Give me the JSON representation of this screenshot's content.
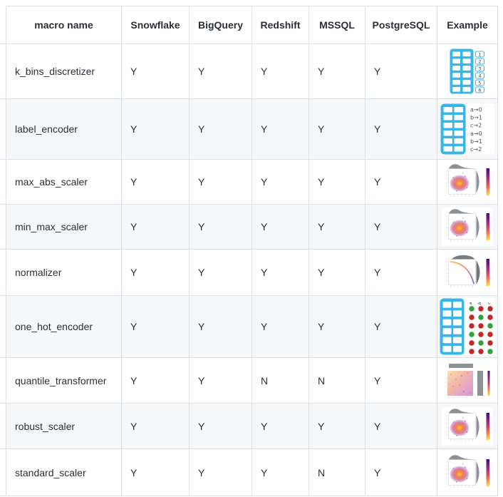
{
  "table": {
    "columns": [
      "macro name",
      "Snowflake",
      "BigQuery",
      "Redshift",
      "MSSQL",
      "PostgreSQL",
      "Example"
    ],
    "rows": [
      {
        "name": "k_bins_discretizer",
        "values": [
          "Y",
          "Y",
          "Y",
          "Y",
          "Y"
        ],
        "example_icon": "kbins-table-icon"
      },
      {
        "name": "label_encoder",
        "values": [
          "Y",
          "Y",
          "Y",
          "Y",
          "Y"
        ],
        "example_icon": "label-mapping-icon"
      },
      {
        "name": "max_abs_scaler",
        "values": [
          "Y",
          "Y",
          "Y",
          "Y",
          "Y"
        ],
        "example_icon": "jointplot-icon"
      },
      {
        "name": "min_max_scaler",
        "values": [
          "Y",
          "Y",
          "Y",
          "Y",
          "Y"
        ],
        "example_icon": "jointplot-icon"
      },
      {
        "name": "normalizer",
        "values": [
          "Y",
          "Y",
          "Y",
          "Y",
          "Y"
        ],
        "example_icon": "normalizer-curve-icon"
      },
      {
        "name": "one_hot_encoder",
        "values": [
          "Y",
          "Y",
          "Y",
          "Y",
          "Y"
        ],
        "example_icon": "one-hot-dots-icon"
      },
      {
        "name": "quantile_transformer",
        "values": [
          "Y",
          "Y",
          "N",
          "N",
          "Y"
        ],
        "example_icon": "quantile-heatmap-icon"
      },
      {
        "name": "robust_scaler",
        "values": [
          "Y",
          "Y",
          "Y",
          "Y",
          "Y"
        ],
        "example_icon": "jointplot-icon"
      },
      {
        "name": "standard_scaler",
        "values": [
          "Y",
          "Y",
          "Y",
          "N",
          "Y"
        ],
        "example_icon": "jointplot-icon"
      }
    ],
    "thumbnails": {
      "kbins": {
        "numbers": [
          "1",
          "2",
          "3",
          "4",
          "5",
          "6"
        ]
      },
      "label": {
        "mappings": [
          "a→0",
          "b→1",
          "c→2",
          "a→0",
          "b→1",
          "c→2"
        ]
      },
      "onehot": {
        "letters": [
          "a",
          "b",
          "c"
        ],
        "pattern": [
          [
            1,
            0,
            0
          ],
          [
            0,
            1,
            0
          ],
          [
            0,
            0,
            1
          ],
          [
            1,
            0,
            0
          ],
          [
            0,
            1,
            0
          ],
          [
            0,
            0,
            1
          ]
        ]
      }
    },
    "colors": {
      "accent_blue": "#38b6e8",
      "dot_green": "#2fa23a",
      "dot_red": "#c42727",
      "stripe": "#f6f7f9",
      "border": "#dce1e7",
      "thumb_gray": "#8d9297"
    }
  }
}
